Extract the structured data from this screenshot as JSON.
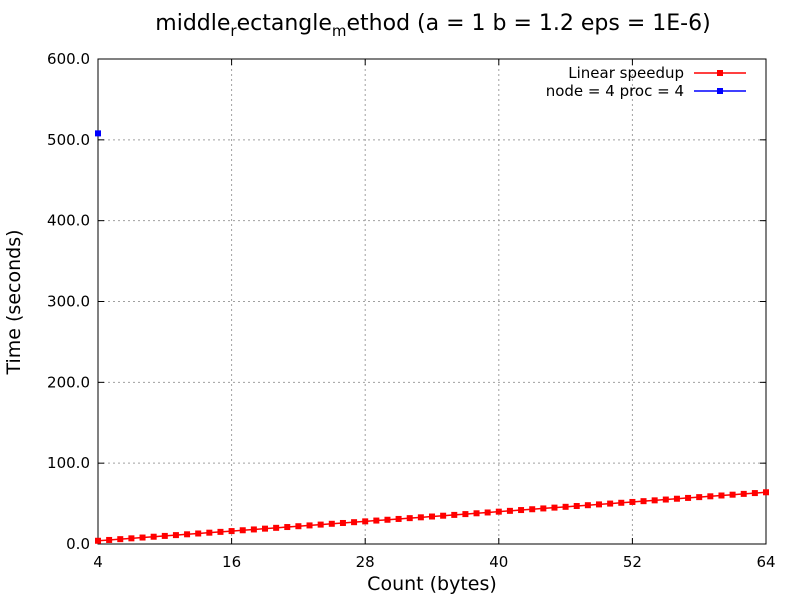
{
  "chart_data": {
    "type": "line",
    "title": {
      "parts": [
        {
          "text": "middle",
          "sub": false
        },
        {
          "text": "r",
          "sub": true
        },
        {
          "text": "ectangle",
          "sub": false
        },
        {
          "text": "m",
          "sub": true
        },
        {
          "text": "ethod (a = 1 b = 1.2 eps = 1E-6)",
          "sub": false
        }
      ]
    },
    "xlabel": "Count (bytes)",
    "ylabel": "Time (seconds)",
    "xlim": [
      4,
      64
    ],
    "ylim": [
      0,
      600
    ],
    "xticks": [
      4,
      16,
      28,
      40,
      52,
      64
    ],
    "xtick_labels": [
      "4",
      "16",
      "28",
      "40",
      "52",
      "64"
    ],
    "yticks": [
      0,
      100,
      200,
      300,
      400,
      500,
      600
    ],
    "ytick_labels": [
      "0.0",
      "100.0",
      "200.0",
      "300.0",
      "400.0",
      "500.0",
      "600.0"
    ],
    "grid": true,
    "legend_position": "top-right",
    "series": [
      {
        "name": "Linear speedup",
        "color": "#ff0000",
        "x_from": 4,
        "x_to": 64,
        "x_step": 1,
        "y_equals_x": true
      },
      {
        "name": "node = 4 proc = 4",
        "color": "#0000ff",
        "x": [
          4
        ],
        "y": [
          508
        ]
      }
    ]
  }
}
